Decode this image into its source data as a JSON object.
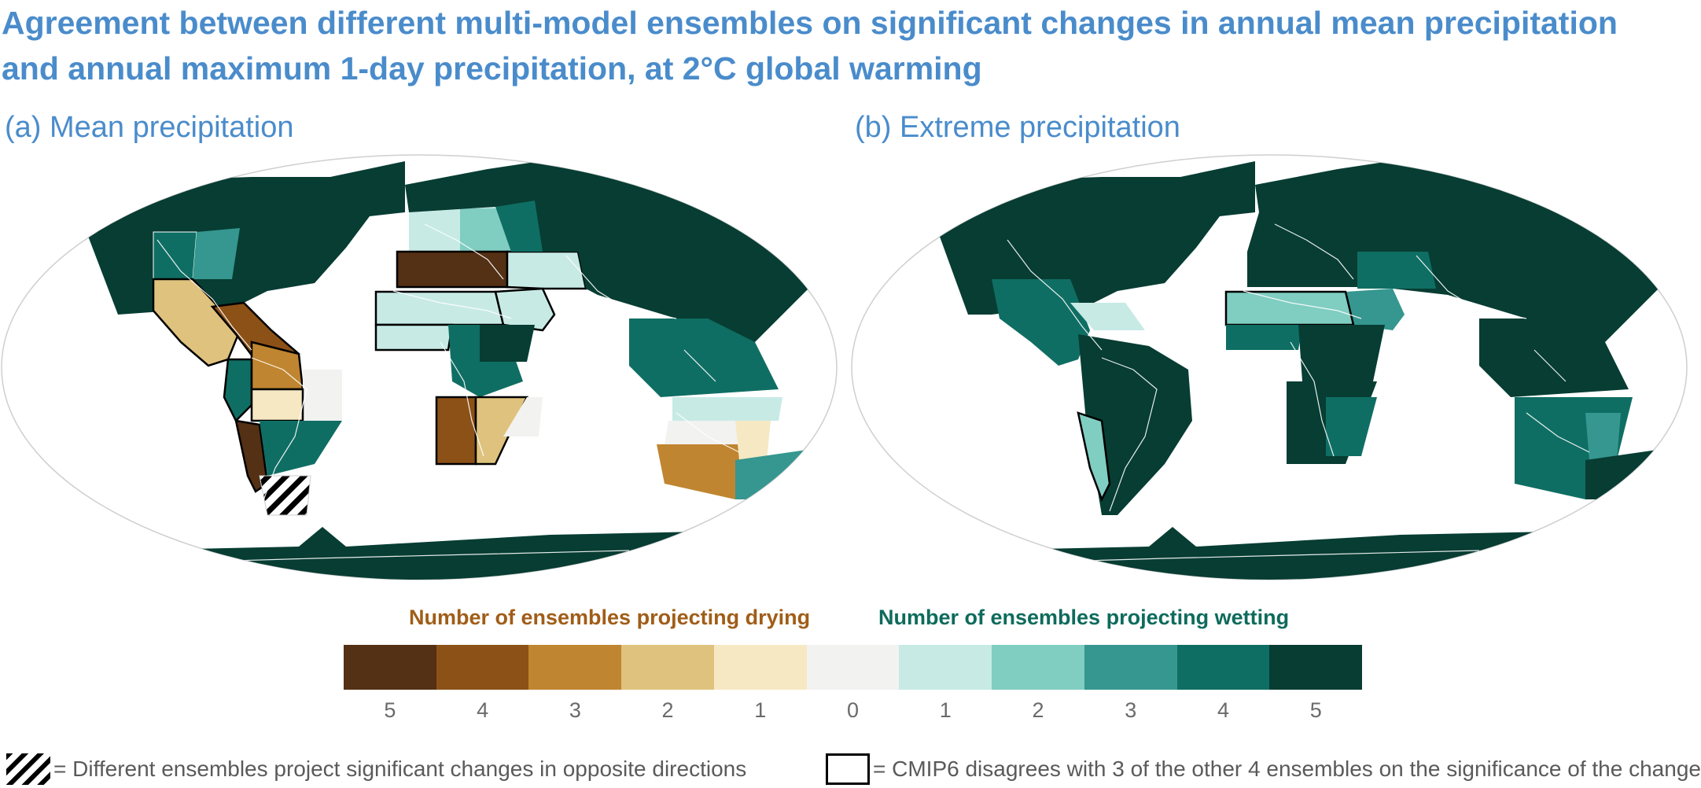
{
  "figure": {
    "title_line1": "Agreement between different multi-model ensembles on significant changes in annual mean precipitation",
    "title_line2": "and annual maximum 1-day precipitation, at 2°C global warming"
  },
  "panels": {
    "a": {
      "label": "(a) Mean precipitation"
    },
    "b": {
      "label": "(b) Extreme precipitation"
    }
  },
  "colors": {
    "dry5": "#543014",
    "dry4": "#8c5117",
    "dry3": "#c08530",
    "dry2": "#dfc27d",
    "dry1": "#f6e8c3",
    "zero": "#f2f2f0",
    "wet1": "#c7eae5",
    "wet2": "#80cdc1",
    "wet3": "#35978f",
    "wet4": "#0f6e63",
    "wet5": "#073d33",
    "title": "#4a8ccb",
    "outline": "#000000",
    "coastline": "#ffffff"
  },
  "colorbar": {
    "drying_heading": "Number of ensembles projecting drying",
    "wetting_heading": "Number of ensembles projecting wetting",
    "ticks": [
      "5",
      "4",
      "3",
      "2",
      "1",
      "0",
      "1",
      "2",
      "3",
      "4",
      "5"
    ]
  },
  "legend": {
    "hatch_text": "= Different ensembles project significant changes in opposite directions",
    "box_text": "= CMIP6 disagrees with 3 of the other 4 ensembles on the significance of the change"
  }
}
